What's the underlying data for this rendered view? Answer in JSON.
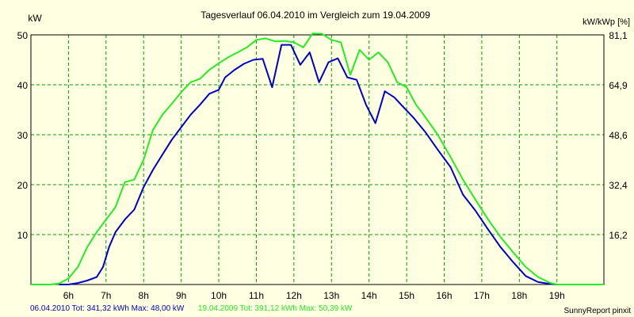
{
  "chart_data": {
    "type": "line",
    "title": "Tagesverlauf 06.04.2010 im Vergleich zum 19.04.2009",
    "ylabel_left": "kW",
    "ylabel_right": "kW/kWp [%]",
    "xlim": [
      5.0,
      20.25
    ],
    "ylim": [
      0,
      50
    ],
    "y_ticks_left": [
      10,
      20,
      30,
      40,
      50
    ],
    "y_ticks_right": [
      {
        "value": 10,
        "label": "16,2"
      },
      {
        "value": 20,
        "label": "32,4"
      },
      {
        "value": 30,
        "label": "48,6"
      },
      {
        "value": 40,
        "label": "64,9"
      },
      {
        "value": 50,
        "label": "81,1"
      }
    ],
    "x_ticks": [
      {
        "value": 6,
        "label": "6h"
      },
      {
        "value": 7,
        "label": "7h"
      },
      {
        "value": 8,
        "label": "8h"
      },
      {
        "value": 9,
        "label": "9h"
      },
      {
        "value": 10,
        "label": "10h"
      },
      {
        "value": 11,
        "label": "11h"
      },
      {
        "value": 12,
        "label": "12h"
      },
      {
        "value": 13,
        "label": "13h"
      },
      {
        "value": 14,
        "label": "14h"
      },
      {
        "value": 15,
        "label": "15h"
      },
      {
        "value": 16,
        "label": "16h"
      },
      {
        "value": 17,
        "label": "17h"
      },
      {
        "value": 18,
        "label": "18h"
      },
      {
        "value": 19,
        "label": "19h"
      }
    ],
    "grid": true,
    "colors": {
      "background": "#ffffe1",
      "grid": "#00a000",
      "series_2010": "#0000cc",
      "series_2009": "#22ee22"
    },
    "series": [
      {
        "name": "06.04.2010",
        "color": "#0000cc",
        "points": [
          [
            5.75,
            0.0
          ],
          [
            6.0,
            0.0
          ],
          [
            6.25,
            0.3
          ],
          [
            6.5,
            0.8
          ],
          [
            6.75,
            1.5
          ],
          [
            6.92,
            3.5
          ],
          [
            7.08,
            7.5
          ],
          [
            7.25,
            10.5
          ],
          [
            7.5,
            13.0
          ],
          [
            7.75,
            15.0
          ],
          [
            8.0,
            19.5
          ],
          [
            8.25,
            23.0
          ],
          [
            8.5,
            26.0
          ],
          [
            8.75,
            29.0
          ],
          [
            9.0,
            31.5
          ],
          [
            9.25,
            34.0
          ],
          [
            9.5,
            36.0
          ],
          [
            9.75,
            38.2
          ],
          [
            10.0,
            39.0
          ],
          [
            10.17,
            41.5
          ],
          [
            10.42,
            43.0
          ],
          [
            10.67,
            44.2
          ],
          [
            10.92,
            45.0
          ],
          [
            11.17,
            45.2
          ],
          [
            11.42,
            39.5
          ],
          [
            11.67,
            48.0
          ],
          [
            11.92,
            48.0
          ],
          [
            12.17,
            44.0
          ],
          [
            12.42,
            46.5
          ],
          [
            12.67,
            40.5
          ],
          [
            12.92,
            44.5
          ],
          [
            13.17,
            45.3
          ],
          [
            13.42,
            41.5
          ],
          [
            13.67,
            41.0
          ],
          [
            13.92,
            36.0
          ],
          [
            14.17,
            32.3
          ],
          [
            14.42,
            38.7
          ],
          [
            14.67,
            37.5
          ],
          [
            14.92,
            35.5
          ],
          [
            15.17,
            33.5
          ],
          [
            15.5,
            30.5
          ],
          [
            15.83,
            27.0
          ],
          [
            16.17,
            23.5
          ],
          [
            16.5,
            18.0
          ],
          [
            16.83,
            14.8
          ],
          [
            17.17,
            11.0
          ],
          [
            17.5,
            7.5
          ],
          [
            17.83,
            4.5
          ],
          [
            18.17,
            1.7
          ],
          [
            18.5,
            0.5
          ],
          [
            18.83,
            0.1
          ],
          [
            19.0,
            0.0
          ]
        ]
      },
      {
        "name": "19.04.2009",
        "color": "#22ee22",
        "points": [
          [
            5.0,
            0.0
          ],
          [
            5.5,
            0.0
          ],
          [
            5.75,
            0.2
          ],
          [
            6.0,
            1.2
          ],
          [
            6.25,
            3.5
          ],
          [
            6.5,
            7.5
          ],
          [
            6.75,
            10.5
          ],
          [
            7.0,
            13.0
          ],
          [
            7.25,
            15.5
          ],
          [
            7.5,
            20.5
          ],
          [
            7.75,
            21.0
          ],
          [
            8.0,
            25.0
          ],
          [
            8.25,
            31.0
          ],
          [
            8.5,
            34.0
          ],
          [
            8.75,
            36.2
          ],
          [
            9.0,
            38.5
          ],
          [
            9.25,
            40.5
          ],
          [
            9.5,
            41.2
          ],
          [
            9.75,
            43.0
          ],
          [
            10.0,
            44.3
          ],
          [
            10.25,
            45.5
          ],
          [
            10.5,
            46.5
          ],
          [
            10.75,
            47.5
          ],
          [
            11.0,
            49.0
          ],
          [
            11.25,
            49.3
          ],
          [
            11.5,
            48.7
          ],
          [
            11.75,
            48.8
          ],
          [
            12.0,
            48.5
          ],
          [
            12.25,
            47.5
          ],
          [
            12.5,
            50.3
          ],
          [
            12.75,
            50.2
          ],
          [
            13.0,
            49.0
          ],
          [
            13.25,
            48.5
          ],
          [
            13.5,
            42.0
          ],
          [
            13.75,
            47.0
          ],
          [
            14.0,
            45.0
          ],
          [
            14.25,
            46.5
          ],
          [
            14.5,
            44.5
          ],
          [
            14.75,
            40.5
          ],
          [
            15.0,
            39.5
          ],
          [
            15.25,
            36.0
          ],
          [
            15.5,
            33.5
          ],
          [
            15.83,
            30.0
          ],
          [
            16.17,
            25.5
          ],
          [
            16.5,
            21.0
          ],
          [
            16.83,
            17.0
          ],
          [
            17.17,
            13.0
          ],
          [
            17.5,
            9.5
          ],
          [
            17.83,
            6.5
          ],
          [
            18.17,
            3.5
          ],
          [
            18.5,
            1.5
          ],
          [
            18.83,
            0.3
          ],
          [
            19.0,
            0.0
          ],
          [
            20.25,
            0.0
          ]
        ]
      }
    ],
    "legend": [
      {
        "text": "06.04.2010 Tot: 341,32 kWh Max: 48,00 kW",
        "color": "#0000cc"
      },
      {
        "text": "19.04.2009 Tot: 391,12 kWh Max: 50,39 kW",
        "color": "#22ee22"
      }
    ],
    "footer_right": "SunnyReport pinxit"
  }
}
